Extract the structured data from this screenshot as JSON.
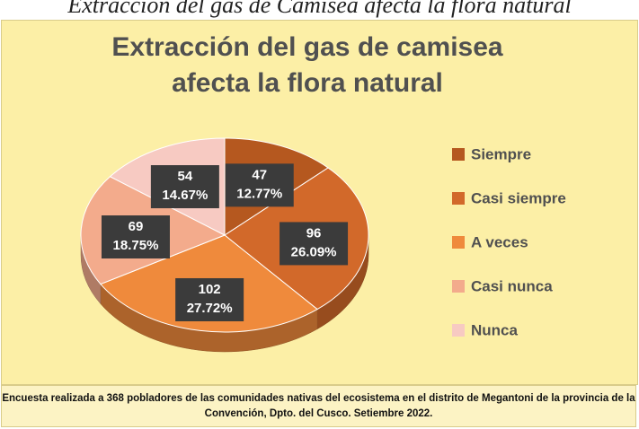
{
  "caption": "Extracción del gas de Camisea afecta la flora natural",
  "chart_data": {
    "type": "pie",
    "title": "Extracción del gas de camisea afecta la flora natural",
    "categories": [
      "Siempre",
      "Casi siempre",
      "A  veces",
      "Casi nunca",
      "Nunca"
    ],
    "values": [
      47,
      96,
      102,
      69,
      54
    ],
    "percentages": [
      12.77,
      26.09,
      27.72,
      18.75,
      14.67
    ],
    "percentage_labels": [
      "12.77%",
      "26.09%",
      "27.72%",
      "18.75%",
      "14.67%"
    ],
    "colors": [
      "#b5581f",
      "#d2692a",
      "#ef8a3c",
      "#f3ab8c",
      "#f7cac2"
    ],
    "legend": "right",
    "note": "Encuesta realizada a 368 pobladores de las comunidades nativas del ecosistema  en el distrito de Megantoni de la provincia de la Convención,  Dpto. del Cusco. Setiembre 2022."
  }
}
